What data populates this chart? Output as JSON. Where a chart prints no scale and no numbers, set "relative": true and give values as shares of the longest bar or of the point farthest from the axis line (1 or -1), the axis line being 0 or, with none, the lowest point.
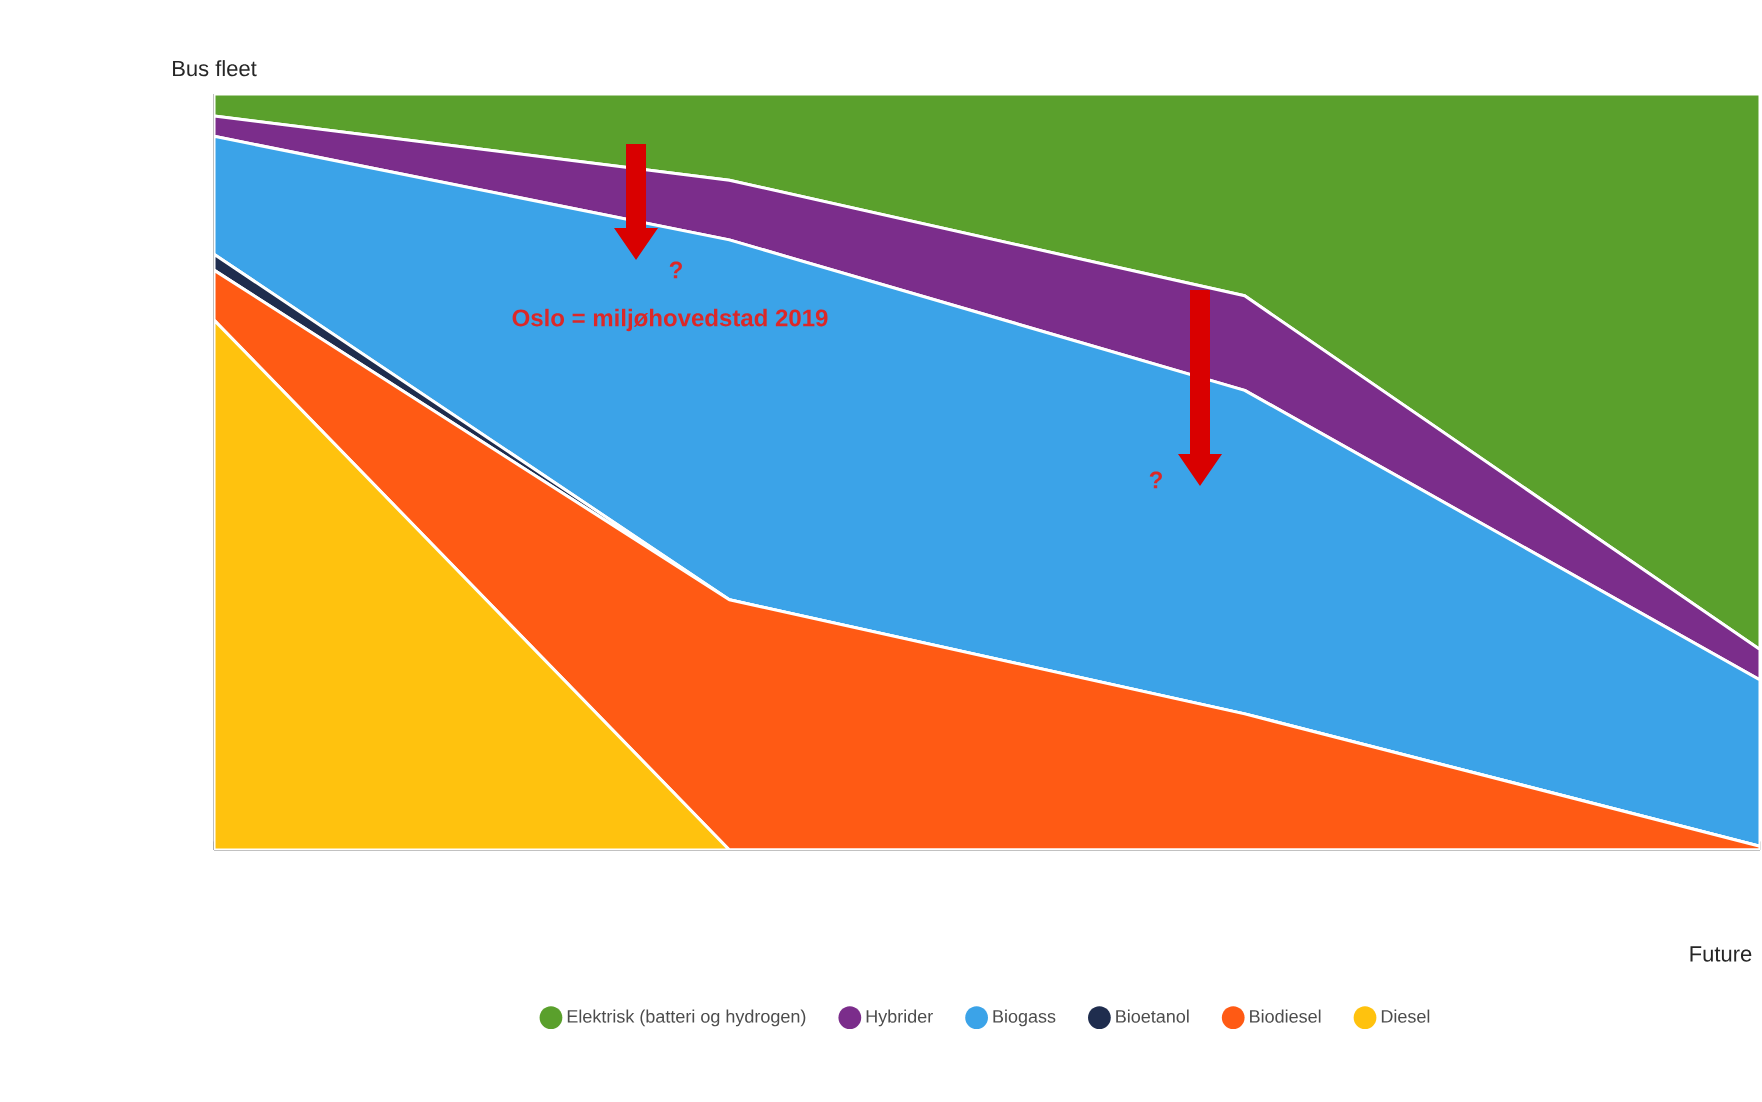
{
  "chart_data": {
    "type": "area",
    "stacked": true,
    "relative": true,
    "ylabel": "Bus fleet",
    "xlabel": "Future",
    "categories": [
      null,
      null,
      null,
      null
    ],
    "legend": "bottom",
    "series": [
      {
        "name": "Diesel",
        "color": "#ffc20e",
        "values": [
          0.701,
          0,
          0,
          0
        ]
      },
      {
        "name": "Biodiesel",
        "color": "#ff5a14",
        "values": [
          0.066,
          0.331,
          0.18,
          0.005
        ]
      },
      {
        "name": "Bioetanol",
        "color": "#1f2d4e",
        "values": [
          0.021,
          0,
          0,
          0
        ]
      },
      {
        "name": "Biogass",
        "color": "#3ba3e8",
        "values": [
          0.156,
          0.476,
          0.428,
          0.22
        ]
      },
      {
        "name": "Hybrider",
        "color": "#7b2d8b",
        "values": [
          0.027,
          0.079,
          0.125,
          0.04
        ]
      },
      {
        "name": "Elektrisk (batteri og hydrogen)",
        "color": "#5aa02c",
        "values": [
          0.029,
          0.114,
          0.267,
          0.735
        ]
      }
    ],
    "annotations": [
      "Oslo = miljøhovedstad 2019",
      "?",
      "?"
    ]
  }
}
